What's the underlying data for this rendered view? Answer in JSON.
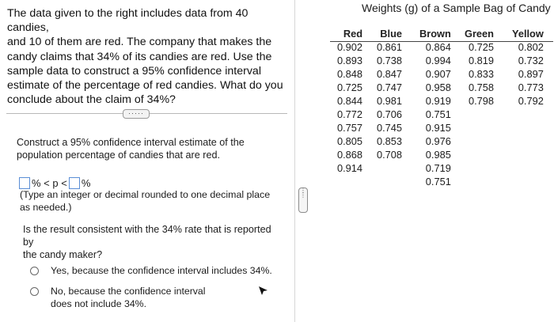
{
  "question": {
    "lines": [
      "The data given to the right includes data from 40 candies,",
      "and 10 of them are red. The company that makes the",
      "candy claims that 34% of its candies are red. Use the",
      "sample data to construct a 95% confidence interval",
      "estimate of the percentage of red candies. What do you",
      "conclude about the claim of 34%?"
    ]
  },
  "more_button": "·····",
  "part1": {
    "prompt_lines": [
      "Construct a 95% confidence interval estimate of the",
      "population percentage of candies that are red."
    ],
    "expr_mid": "% < p <",
    "expr_end": "%",
    "hint_lines": [
      "(Type an integer or decimal rounded to one decimal place",
      "as needed.)"
    ]
  },
  "part2": {
    "prompt_lines": [
      "Is the result consistent with the 34% rate that is reported by",
      "the candy maker?"
    ],
    "options": [
      {
        "lines": [
          "Yes, because the confidence interval includes 34%."
        ]
      },
      {
        "lines": [
          "No, because the confidence interval",
          "does not include 34%."
        ]
      }
    ]
  },
  "table": {
    "title": "Weights (g) of a Sample Bag of Candy",
    "columns": [
      {
        "header": "Red",
        "values": [
          "0.902",
          "0.893",
          "0.848",
          "0.725",
          "0.844",
          "0.772",
          "0.757",
          "0.805",
          "0.868",
          "0.914"
        ]
      },
      {
        "header": "Blue",
        "values": [
          "0.861",
          "0.738",
          "0.847",
          "0.747",
          "0.981",
          "0.706",
          "0.745",
          "0.853",
          "0.708"
        ]
      },
      {
        "header": "Brown",
        "values": [
          "0.864",
          "0.994",
          "0.907",
          "0.958",
          "0.919",
          "0.751",
          "0.915",
          "0.976",
          "0.985",
          "0.719",
          "0.751"
        ]
      },
      {
        "header": "Green",
        "values": [
          "0.725",
          "0.819",
          "0.833",
          "0.758",
          "0.798"
        ]
      },
      {
        "header": "Yellow",
        "values": [
          "0.802",
          "0.732",
          "0.897",
          "0.773",
          "0.792"
        ]
      }
    ]
  },
  "colors": {
    "input_border": "#5a8ed6",
    "divider": "#b8b8b8"
  }
}
